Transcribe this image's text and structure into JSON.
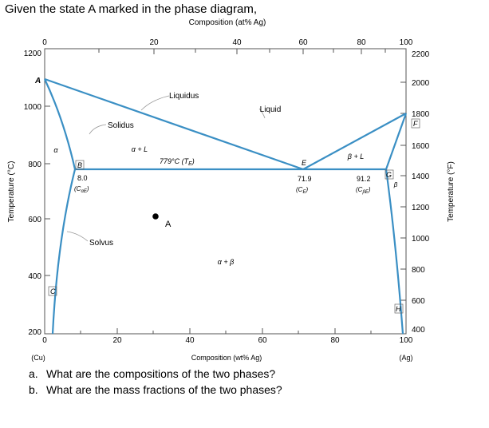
{
  "title": "Given the state A marked in the phase diagram,",
  "top_axis": {
    "label": "Composition (at% Ag)",
    "ticks": [
      0,
      20,
      40,
      60,
      80,
      100
    ]
  },
  "bottom_axis": {
    "label": "Composition (wt% Ag)",
    "ticks": [
      0,
      20,
      40,
      60,
      80,
      100
    ],
    "left_note": "(Cu)",
    "right_note": "(Ag)"
  },
  "left_axis": {
    "label": "Temperature (°C)",
    "ticks": [
      200,
      400,
      600,
      800,
      1000,
      1200
    ]
  },
  "right_axis": {
    "label": "Temperature (°F)",
    "ticks": [
      400,
      600,
      800,
      1000,
      1200,
      1400,
      1600,
      1800,
      2000,
      2200
    ]
  },
  "regions": {
    "liquid": "Liquid",
    "alpha_plus_L": "α + L",
    "beta_plus_L": "β + L",
    "alpha_plus_beta": "α + β",
    "alpha": "α",
    "beta": "β"
  },
  "curve_labels": {
    "liquidus": "Liquidus",
    "solidus": "Solidus",
    "solvus": "Solvus",
    "eutectic_temp": "779°C (T",
    "eutectic_temp_sub": "E",
    "eutectic_temp_close": ")"
  },
  "points": {
    "A": "A",
    "B": "B",
    "C": "C",
    "E": "E",
    "F": "F",
    "G": "G",
    "H": "H",
    "state": "A"
  },
  "compositions": {
    "alpha_e": "8.0",
    "alpha_e_sym": "(C",
    "alpha_e_sub": "αE",
    "liquid_e": "71.9",
    "liquid_e_sym": "(C",
    "liquid_e_sub": "E",
    "beta_e": "91.2",
    "beta_e_sym": "(C",
    "beta_e_sub": "βE"
  },
  "questions": [
    {
      "letter": "a.",
      "text": "What are the compositions of the two phases?"
    },
    {
      "letter": "b.",
      "text": "What are the mass fractions of the two phases?"
    }
  ],
  "colors": {
    "phase_line": "#3a8fc4",
    "axis": "#555555"
  }
}
